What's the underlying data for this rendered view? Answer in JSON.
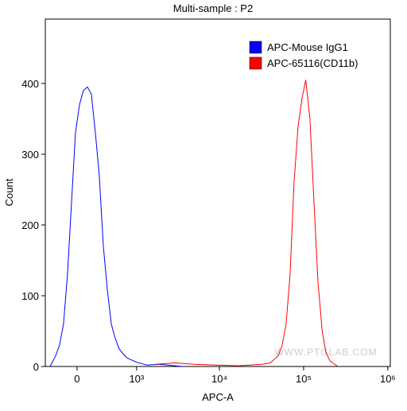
{
  "chart_data": {
    "type": "line",
    "title": "Multi-sample : P2",
    "xlabel": "APC-A",
    "ylabel": "Count",
    "xscale": "biexponential",
    "xlim": [
      -400,
      1070000
    ],
    "ylim": [
      0,
      491
    ],
    "xticks": [
      0,
      {
        "value": 1000,
        "label": "10³"
      },
      {
        "value": 10000,
        "label": "10⁴"
      },
      {
        "value": 100000,
        "label": "10⁵"
      },
      {
        "value": 1000000,
        "label": "10⁶"
      }
    ],
    "yticks": [
      0,
      100,
      200,
      300,
      400
    ],
    "legend": "top-right",
    "watermark": "WWW.PTGLAB.COM",
    "series": [
      {
        "name": "APC-Mouse IgG1",
        "color": "#0000ff",
        "x": [
          -330,
          -253,
          -203,
          -154,
          -108,
          -62,
          -18,
          27,
          71,
          117,
          164,
          213,
          264,
          319,
          377,
          440,
          507,
          580,
          660,
          750,
          1000,
          1350,
          1890,
          3660
        ],
        "values": [
          0,
          15,
          30,
          60,
          130,
          230,
          330,
          370,
          390,
          395,
          385,
          330,
          270,
          170,
          110,
          60,
          40,
          25,
          18,
          12,
          6,
          2,
          3,
          0
        ]
      },
      {
        "name": "APC-65116(CD11b)",
        "color": "#ff0000",
        "x": [
          1690,
          2950,
          5100,
          16700,
          32000,
          40000,
          50000,
          55500,
          62000,
          69000,
          77000,
          86000,
          96000,
          106000,
          119000,
          133000,
          148000,
          166000,
          184000,
          205000,
          255000
        ],
        "values": [
          3,
          5,
          3,
          1,
          3,
          5,
          15,
          30,
          60,
          130,
          260,
          340,
          380,
          405,
          350,
          230,
          120,
          50,
          20,
          8,
          0
        ]
      }
    ]
  }
}
